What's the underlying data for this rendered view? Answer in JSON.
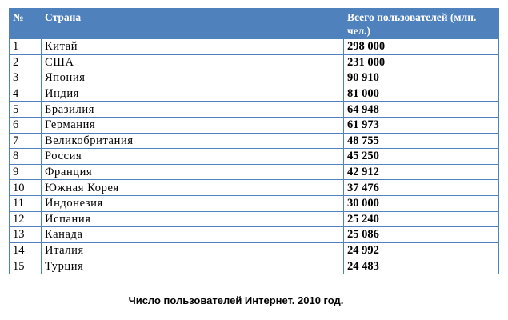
{
  "table": {
    "headers": {
      "num": "№",
      "country": "Страна",
      "users": "Всего пользователей (млн. чел.)"
    },
    "rows": [
      {
        "num": "1",
        "country": "Китай",
        "users": "298 000"
      },
      {
        "num": "2",
        "country": "США",
        "users": "231 000"
      },
      {
        "num": "3",
        "country": "Япония",
        "users": "90 910"
      },
      {
        "num": "4",
        "country": "Индия",
        "users": "81 000"
      },
      {
        "num": "5",
        "country": "Бразилия",
        "users": "64 948"
      },
      {
        "num": "6",
        "country": "Германия",
        "users": "61 973"
      },
      {
        "num": "7",
        "country": "Великобритания",
        "users": "48 755"
      },
      {
        "num": "8",
        "country": "Россия",
        "users": "45 250"
      },
      {
        "num": "9",
        "country": "Франция",
        "users": "42 912"
      },
      {
        "num": "10",
        "country": "Южная Корея",
        "users": "37 476"
      },
      {
        "num": "11",
        "country": "Индонезия",
        "users": "30 000"
      },
      {
        "num": "12",
        "country": "Испания",
        "users": "25 240"
      },
      {
        "num": "13",
        "country": "Канада",
        "users": "25 086"
      },
      {
        "num": "14",
        "country": "Италия",
        "users": "24 992"
      },
      {
        "num": "15",
        "country": "Турция",
        "users": "24 483"
      }
    ]
  },
  "caption": "Число пользователей Интернет. 2010 год.",
  "colors": {
    "header_bg": "#4f81bd",
    "header_text": "#ffffff",
    "border": "#4f81bd"
  }
}
